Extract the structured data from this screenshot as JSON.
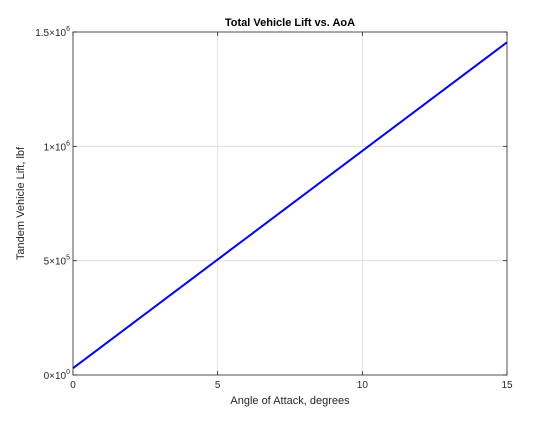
{
  "chart_data": {
    "type": "line",
    "title": "Total Vehicle Lift vs. AoA",
    "xlabel": "Angle of Attack, degrees",
    "ylabel": "Tandem Vehicle Lift, lbf",
    "xlim": [
      0,
      15
    ],
    "ylim": [
      0,
      1500000
    ],
    "grid": true,
    "x_ticks": [
      {
        "value": 0,
        "label": "0"
      },
      {
        "value": 5,
        "label": "5"
      },
      {
        "value": 10,
        "label": "10"
      },
      {
        "value": 15,
        "label": "15"
      }
    ],
    "y_ticks": [
      {
        "value": 0,
        "mantissa": "0",
        "times": "×10",
        "exponent": "0"
      },
      {
        "value": 500000,
        "mantissa": "5",
        "times": "×10",
        "exponent": "5"
      },
      {
        "value": 1000000,
        "mantissa": "1",
        "times": "×10",
        "exponent": "6"
      },
      {
        "value": 1500000,
        "mantissa": "1.5",
        "times": "×10",
        "exponent": "6"
      }
    ],
    "series": [
      {
        "color": "#0000ff",
        "x": [
          0,
          15
        ],
        "y": [
          30000,
          1455000
        ]
      }
    ],
    "colors": {
      "line": "#0000ff",
      "grid": "#dcdcdc",
      "axis": "#262626"
    }
  }
}
